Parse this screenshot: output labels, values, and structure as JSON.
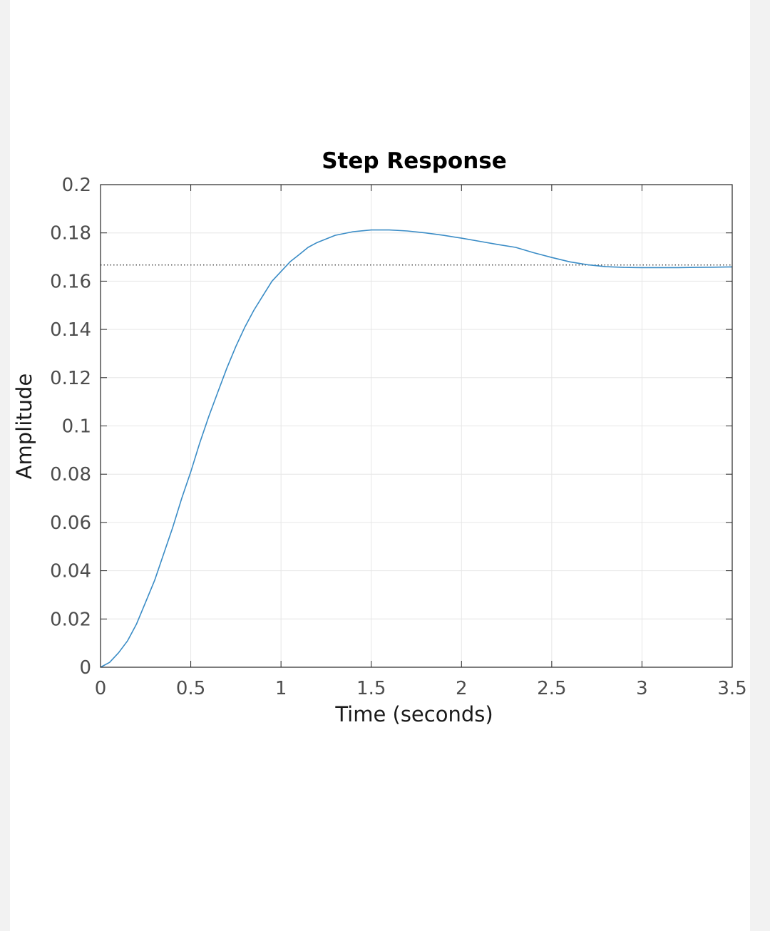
{
  "chart_data": {
    "type": "line",
    "title": "Step Response",
    "xlabel": "Time (seconds)",
    "ylabel": "Amplitude",
    "xlim": [
      0,
      3.5
    ],
    "ylim": [
      0,
      0.2
    ],
    "xticks": [
      0,
      0.5,
      1,
      1.5,
      2,
      2.5,
      3,
      3.5
    ],
    "xtick_labels": [
      "0",
      "0.5",
      "1",
      "1.5",
      "2",
      "2.5",
      "3",
      "3.5"
    ],
    "yticks": [
      0,
      0.02,
      0.04,
      0.06,
      0.08,
      0.1,
      0.12,
      0.14,
      0.16,
      0.18,
      0.2
    ],
    "ytick_labels": [
      "0",
      "0.02",
      "0.04",
      "0.06",
      "0.08",
      "0.1",
      "0.12",
      "0.14",
      "0.16",
      "0.18",
      "0.2"
    ],
    "grid": true,
    "steady_state": 0.1667,
    "series": [
      {
        "x": [
          0,
          0.05,
          0.1,
          0.15,
          0.2,
          0.25,
          0.3,
          0.35,
          0.4,
          0.45,
          0.5,
          0.55,
          0.6,
          0.65,
          0.7,
          0.75,
          0.8,
          0.85,
          0.9,
          0.95,
          1.0,
          1.05,
          1.1,
          1.15,
          1.2,
          1.3,
          1.4,
          1.5,
          1.6,
          1.7,
          1.8,
          1.9,
          2.0,
          2.1,
          2.2,
          2.3,
          2.4,
          2.5,
          2.6,
          2.7,
          2.8,
          2.9,
          3.0,
          3.1,
          3.2,
          3.3,
          3.4,
          3.5
        ],
        "y": [
          0,
          0.002,
          0.006,
          0.011,
          0.018,
          0.027,
          0.036,
          0.047,
          0.058,
          0.07,
          0.081,
          0.093,
          0.104,
          0.114,
          0.124,
          0.133,
          0.141,
          0.148,
          0.154,
          0.16,
          0.164,
          0.168,
          0.171,
          0.174,
          0.176,
          0.179,
          0.1805,
          0.1812,
          0.1812,
          0.1808,
          0.18,
          0.179,
          0.1778,
          0.1765,
          0.1752,
          0.174,
          0.1718,
          0.1698,
          0.168,
          0.1668,
          0.166,
          0.1657,
          0.1656,
          0.1656,
          0.1656,
          0.1657,
          0.1658,
          0.1659
        ]
      }
    ],
    "colors": {
      "line": "#3a8cc6",
      "grid": "#e6e6e6",
      "axes": "#262626",
      "steady_line": "#262626"
    }
  }
}
